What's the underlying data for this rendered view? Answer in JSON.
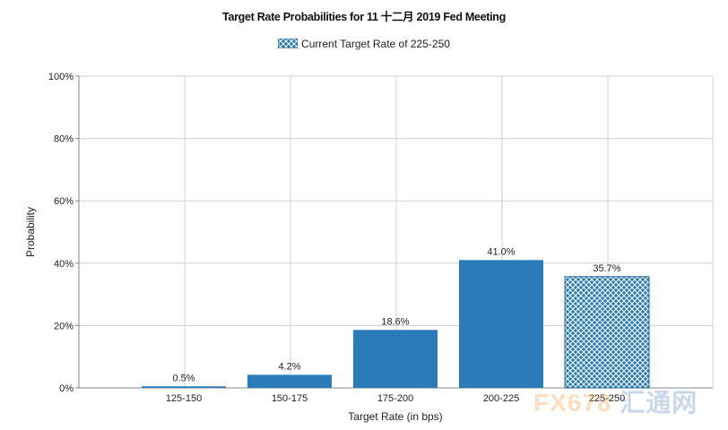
{
  "chart_data": {
    "type": "bar",
    "title": "Target Rate Probabilities for 11 十二月 2019 Fed Meeting",
    "legend": [
      "Current Target Rate of 225-250"
    ],
    "xlabel": "Target Rate (in bps)",
    "ylabel": "Probability",
    "categories": [
      "125-150",
      "150-175",
      "175-200",
      "200-225",
      "225-250"
    ],
    "values": [
      0.5,
      4.2,
      18.6,
      41.0,
      35.7
    ],
    "data_labels": [
      "0.5%",
      "4.2%",
      "18.6%",
      "41.0%",
      "35.7%"
    ],
    "highlighted_category": "225-250",
    "ylim": [
      0,
      100
    ],
    "yticks": [
      "0%",
      "20%",
      "40%",
      "60%",
      "80%",
      "100%"
    ],
    "grid": true,
    "legend_position": "top",
    "colors": {
      "bar": "#2b7bb9",
      "grid": "#d0d0d0"
    }
  },
  "watermark": {
    "text_fx": "FX678",
    "text_cn": "汇通网"
  }
}
